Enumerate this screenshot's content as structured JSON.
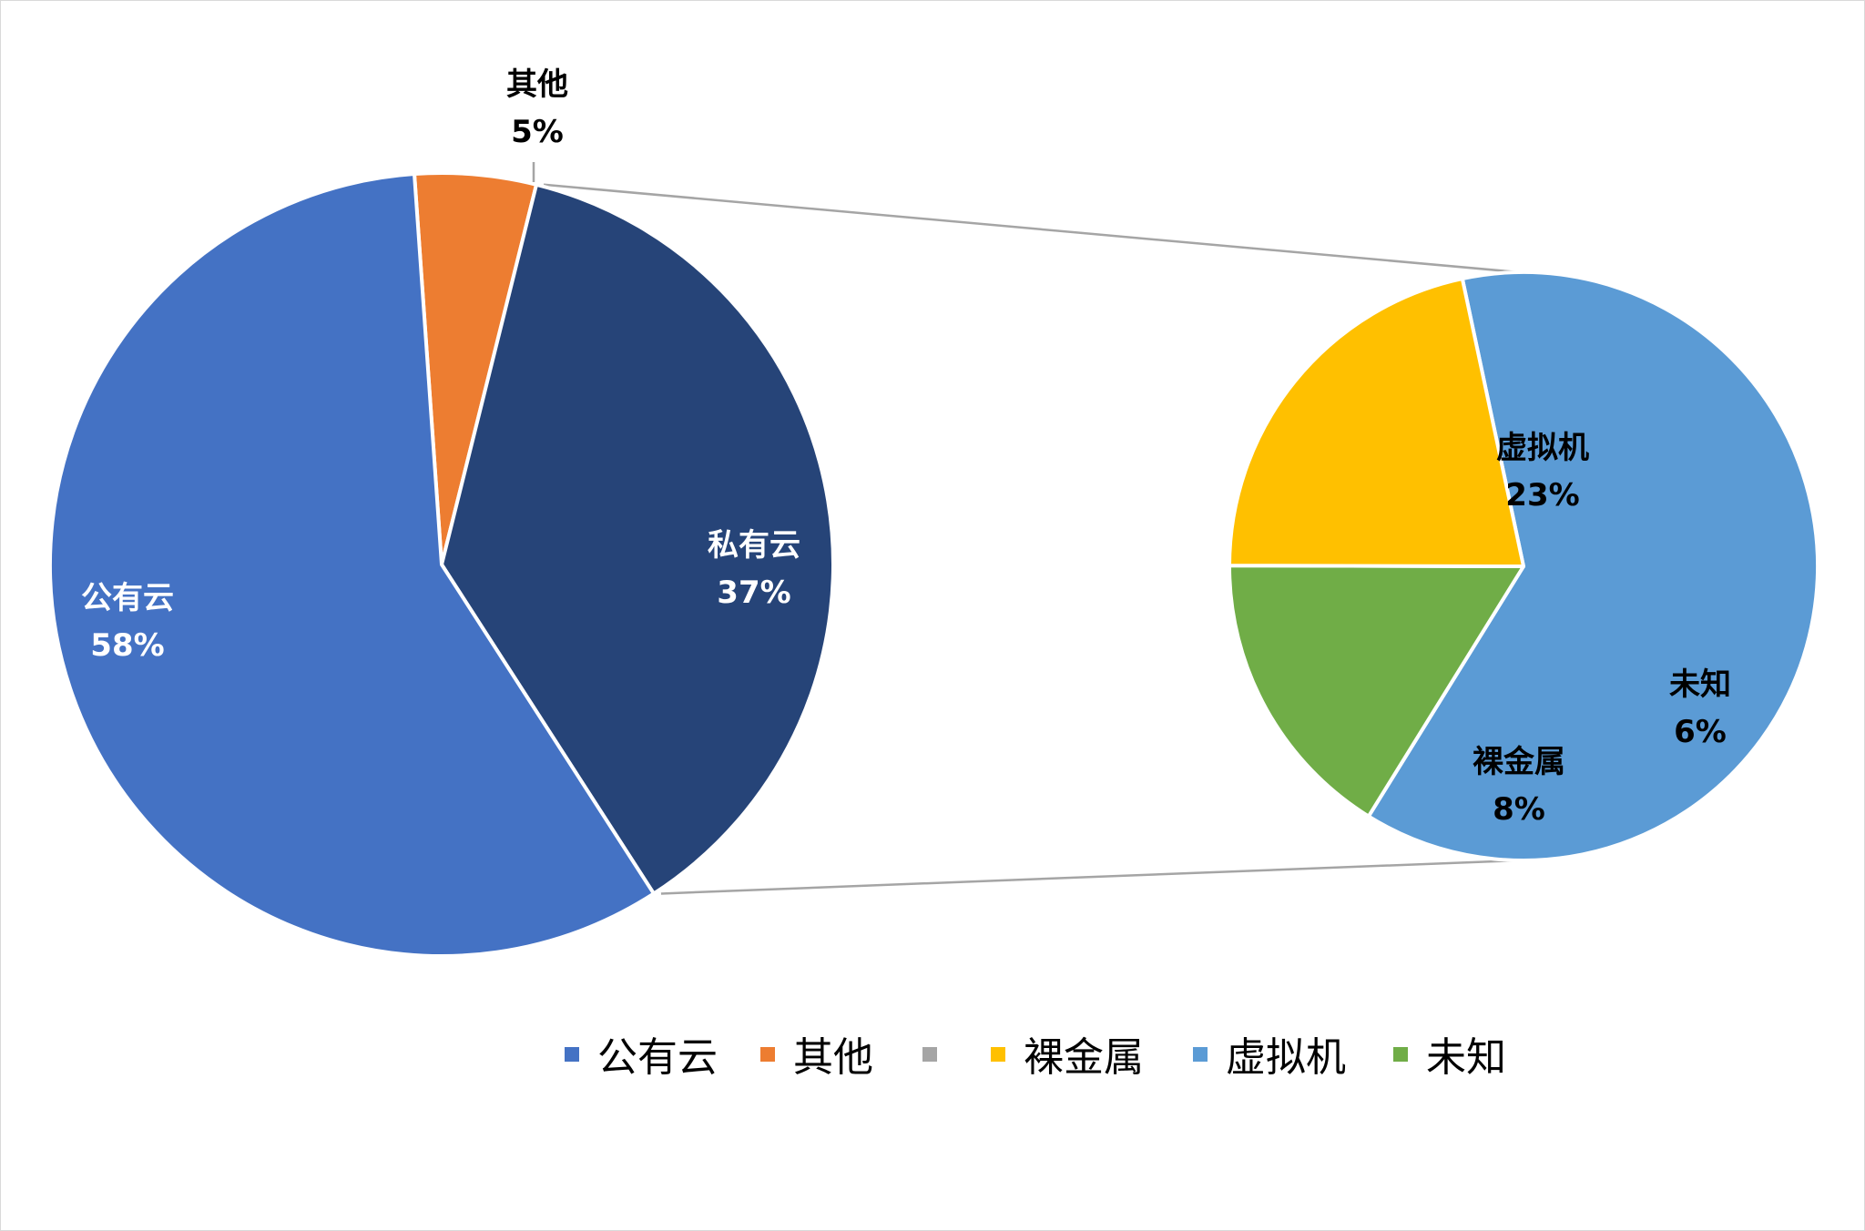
{
  "chart_data": {
    "type": "pie",
    "title": "",
    "main_pie": {
      "slices": [
        {
          "name": "其他",
          "label": "其他",
          "value": 5,
          "value_label": "5%",
          "color": "#ED7D31",
          "label_color": "#000000"
        },
        {
          "name": "私有云",
          "label": "私有云",
          "value": 37,
          "value_label": "37%",
          "color": "#264478",
          "label_color": "#ffffff",
          "exploded_to": "secondary_pie"
        },
        {
          "name": "公有云",
          "label": "公有云",
          "value": 58,
          "value_label": "58%",
          "color": "#4472C4",
          "label_color": "#ffffff"
        }
      ]
    },
    "secondary_pie": {
      "slices": [
        {
          "name": "虚拟机",
          "label": "虚拟机",
          "value": 23,
          "value_label": "23%",
          "color": "#5B9BD5",
          "label_color": "#000000"
        },
        {
          "name": "未知",
          "label": "未知",
          "value": 6,
          "value_label": "6%",
          "color": "#70AD47",
          "label_color": "#000000"
        },
        {
          "name": "裸金属",
          "label": "裸金属",
          "value": 8,
          "value_label": "8%",
          "color": "#FFC000",
          "label_color": "#000000"
        }
      ]
    },
    "legend": {
      "position": "bottom",
      "entries": [
        {
          "label": "公有云",
          "color": "#4472C4"
        },
        {
          "label": "其他",
          "color": "#ED7D31"
        },
        {
          "label": "",
          "color": "#A5A5A5"
        },
        {
          "label": "裸金属",
          "color": "#FFC000"
        },
        {
          "label": "虚拟机",
          "color": "#5B9BD5"
        },
        {
          "label": "未知",
          "color": "#70AD47"
        }
      ]
    },
    "connector_color": "#A5A5A5"
  }
}
